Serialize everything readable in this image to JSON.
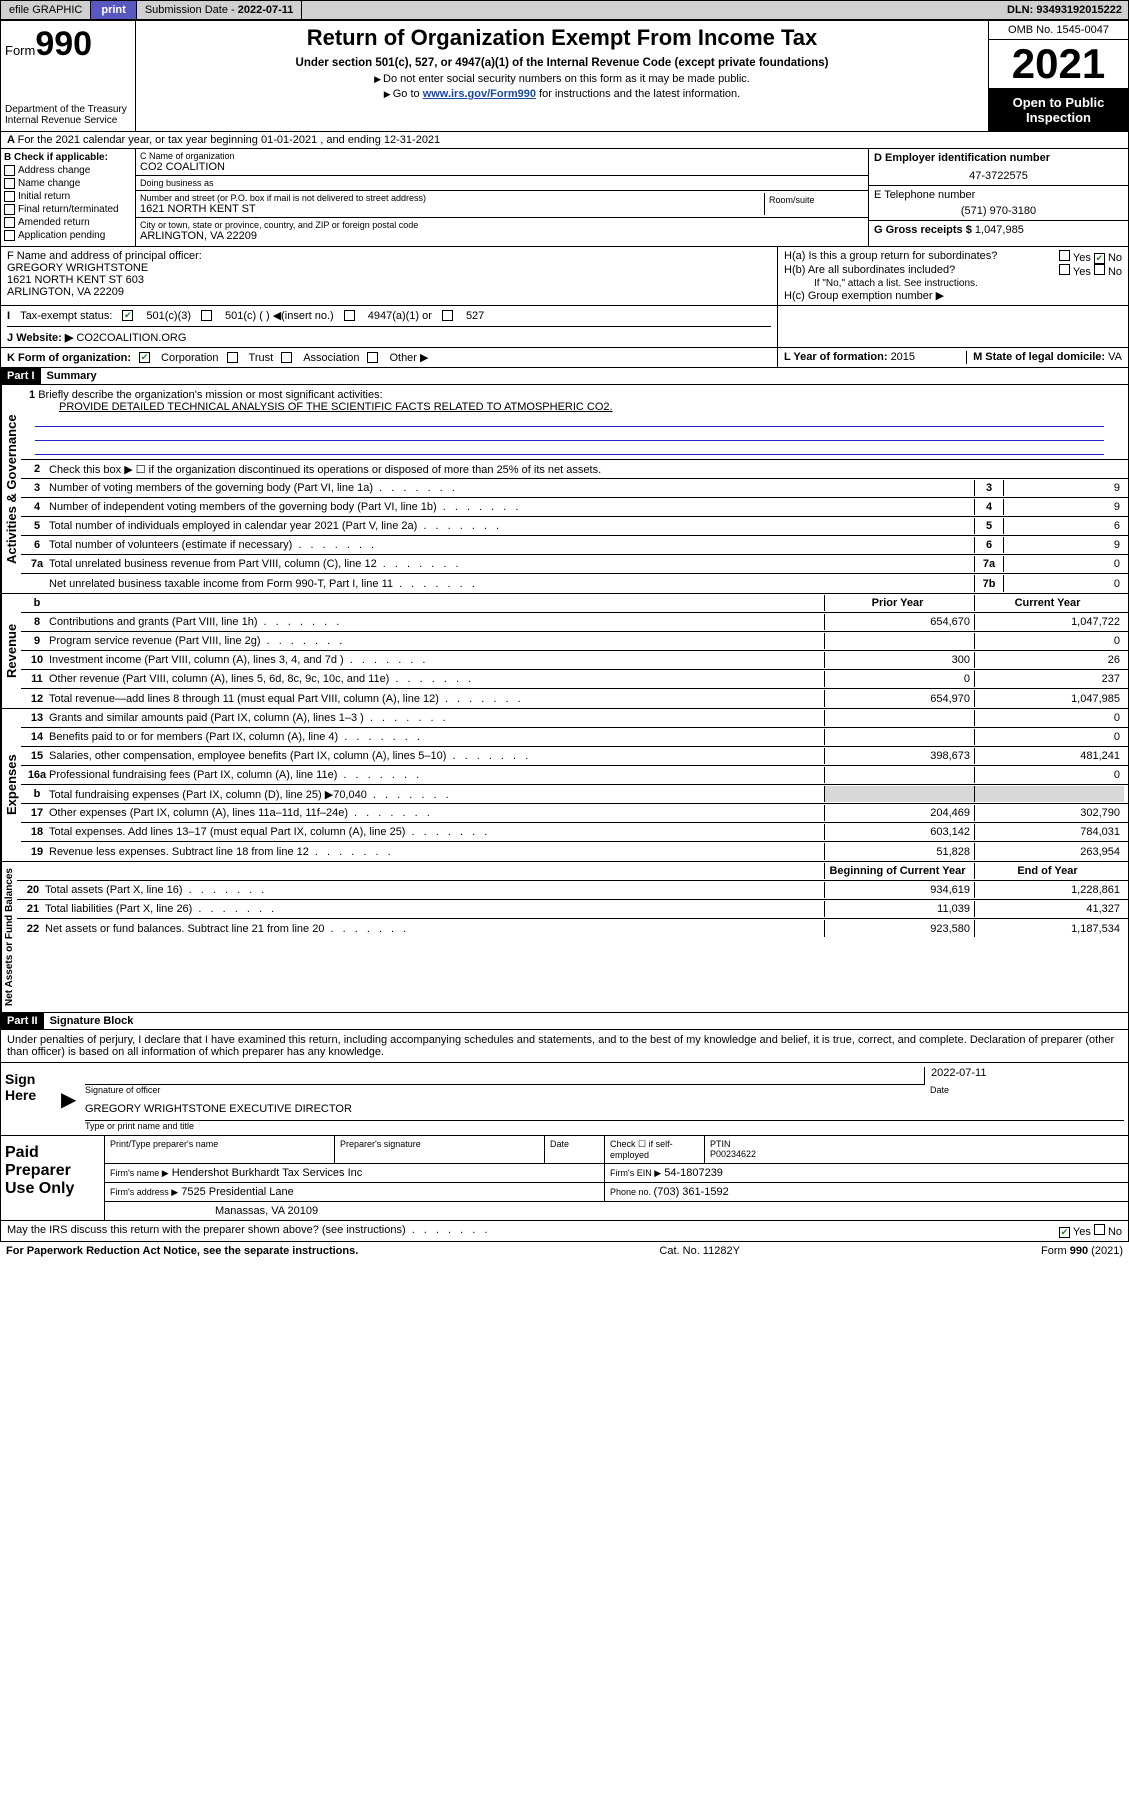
{
  "topbar": {
    "efile": "efile GRAPHIC",
    "print": "print",
    "subdate_label": "Submission Date - ",
    "subdate": "2022-07-11",
    "dln_label": "DLN: ",
    "dln": "93493192015222"
  },
  "header": {
    "form_prefix": "Form",
    "form_num": "990",
    "title": "Return of Organization Exempt From Income Tax",
    "subtitle": "Under section 501(c), 527, or 4947(a)(1) of the Internal Revenue Code (except private foundations)",
    "note1": "Do not enter social security numbers on this form as it may be made public.",
    "note2_pre": "Go to ",
    "note2_link": "www.irs.gov/Form990",
    "note2_post": " for instructions and the latest information.",
    "dept": "Department of the Treasury\nInternal Revenue Service",
    "omb": "OMB No. 1545-0047",
    "year": "2021",
    "open": "Open to Public Inspection"
  },
  "row_a": "For the 2021 calendar year, or tax year beginning 01-01-2021   , and ending 12-31-2021",
  "b": {
    "label": "B Check if applicable:",
    "items": [
      "Address change",
      "Name change",
      "Initial return",
      "Final return/terminated",
      "Amended return",
      "Application pending"
    ]
  },
  "c": {
    "name_label": "C Name of organization",
    "name": "CO2 COALITION",
    "dba_label": "Doing business as",
    "addr_label": "Number and street (or P.O. box if mail is not delivered to street address)",
    "room_label": "Room/suite",
    "addr": "1621 NORTH KENT ST",
    "city_label": "City or town, state or province, country, and ZIP or foreign postal code",
    "city": "ARLINGTON, VA  22209"
  },
  "d": {
    "ein_label": "D Employer identification number",
    "ein": "47-3722575",
    "tel_label": "E Telephone number",
    "tel": "(571) 970-3180",
    "gross_label": "G Gross receipts $ ",
    "gross": "1,047,985"
  },
  "f": {
    "label": "F  Name and address of principal officer:",
    "name": "GREGORY WRIGHTSTONE",
    "addr1": "1621 NORTH KENT ST 603",
    "addr2": "ARLINGTON, VA  22209"
  },
  "h": {
    "a": "H(a)  Is this a group return for subordinates?",
    "b": "H(b)  Are all subordinates included?",
    "b_note": "If \"No,\" attach a list. See instructions.",
    "c": "H(c)  Group exemption number ▶",
    "yes": "Yes",
    "no": "No"
  },
  "i": {
    "label": "Tax-exempt status:",
    "o1": "501(c)(3)",
    "o2": "501(c) (  ) ◀(insert no.)",
    "o3": "4947(a)(1) or",
    "o4": "527"
  },
  "j": {
    "label": "Website: ▶",
    "val": "CO2COALITION.ORG"
  },
  "k": {
    "label": "K Form of organization:",
    "opts": [
      "Corporation",
      "Trust",
      "Association",
      "Other ▶"
    ]
  },
  "l": {
    "label": "L Year of formation: ",
    "val": "2015"
  },
  "m": {
    "label": "M State of legal domicile: ",
    "val": "VA"
  },
  "part1": {
    "num": "Part I",
    "title": "Summary"
  },
  "mission": {
    "label": "Briefly describe the organization's mission or most significant activities:",
    "text": "PROVIDE DETAILED TECHNICAL ANALYSIS OF THE SCIENTIFIC FACTS RELATED TO ATMOSPHERIC CO2."
  },
  "summary": {
    "l2": "Check this box ▶ ☐ if the organization discontinued its operations or disposed of more than 25% of its net assets.",
    "l3": {
      "t": "Number of voting members of the governing body (Part VI, line 1a)",
      "n": "3",
      "v": "9"
    },
    "l4": {
      "t": "Number of independent voting members of the governing body (Part VI, line 1b)",
      "n": "4",
      "v": "9"
    },
    "l5": {
      "t": "Total number of individuals employed in calendar year 2021 (Part V, line 2a)",
      "n": "5",
      "v": "6"
    },
    "l6": {
      "t": "Total number of volunteers (estimate if necessary)",
      "n": "6",
      "v": "9"
    },
    "l7a": {
      "t": "Total unrelated business revenue from Part VIII, column (C), line 12",
      "n": "7a",
      "v": "0"
    },
    "l7b": {
      "t": "Net unrelated business taxable income from Form 990-T, Part I, line 11",
      "n": "7b",
      "v": "0"
    }
  },
  "twocol_hdr": {
    "prior": "Prior Year",
    "current": "Current Year"
  },
  "revenue": [
    {
      "n": "8",
      "t": "Contributions and grants (Part VIII, line 1h)",
      "p": "654,670",
      "c": "1,047,722"
    },
    {
      "n": "9",
      "t": "Program service revenue (Part VIII, line 2g)",
      "p": "",
      "c": "0"
    },
    {
      "n": "10",
      "t": "Investment income (Part VIII, column (A), lines 3, 4, and 7d )",
      "p": "300",
      "c": "26"
    },
    {
      "n": "11",
      "t": "Other revenue (Part VIII, column (A), lines 5, 6d, 8c, 9c, 10c, and 11e)",
      "p": "0",
      "c": "237"
    },
    {
      "n": "12",
      "t": "Total revenue—add lines 8 through 11 (must equal Part VIII, column (A), line 12)",
      "p": "654,970",
      "c": "1,047,985"
    }
  ],
  "expenses": [
    {
      "n": "13",
      "t": "Grants and similar amounts paid (Part IX, column (A), lines 1–3 )",
      "p": "",
      "c": "0"
    },
    {
      "n": "14",
      "t": "Benefits paid to or for members (Part IX, column (A), line 4)",
      "p": "",
      "c": "0"
    },
    {
      "n": "15",
      "t": "Salaries, other compensation, employee benefits (Part IX, column (A), lines 5–10)",
      "p": "398,673",
      "c": "481,241"
    },
    {
      "n": "16a",
      "t": "Professional fundraising fees (Part IX, column (A), line 11e)",
      "p": "",
      "c": "0"
    },
    {
      "n": "b",
      "t": "Total fundraising expenses (Part IX, column (D), line 25) ▶70,040",
      "p": "shade",
      "c": "shade"
    },
    {
      "n": "17",
      "t": "Other expenses (Part IX, column (A), lines 11a–11d, 11f–24e)",
      "p": "204,469",
      "c": "302,790"
    },
    {
      "n": "18",
      "t": "Total expenses. Add lines 13–17 (must equal Part IX, column (A), line 25)",
      "p": "603,142",
      "c": "784,031"
    },
    {
      "n": "19",
      "t": "Revenue less expenses. Subtract line 18 from line 12",
      "p": "51,828",
      "c": "263,954"
    }
  ],
  "netassets_hdr": {
    "begin": "Beginning of Current Year",
    "end": "End of Year"
  },
  "netassets": [
    {
      "n": "20",
      "t": "Total assets (Part X, line 16)",
      "p": "934,619",
      "c": "1,228,861"
    },
    {
      "n": "21",
      "t": "Total liabilities (Part X, line 26)",
      "p": "11,039",
      "c": "41,327"
    },
    {
      "n": "22",
      "t": "Net assets or fund balances. Subtract line 21 from line 20",
      "p": "923,580",
      "c": "1,187,534"
    }
  ],
  "vtabs": {
    "ag": "Activities & Governance",
    "rev": "Revenue",
    "exp": "Expenses",
    "na": "Net Assets or Fund Balances"
  },
  "part2": {
    "num": "Part II",
    "title": "Signature Block"
  },
  "penalties": "Under penalties of perjury, I declare that I have examined this return, including accompanying schedules and statements, and to the best of my knowledge and belief, it is true, correct, and complete. Declaration of preparer (other than officer) is based on all information of which preparer has any knowledge.",
  "sign": {
    "here": "Sign Here",
    "sig_officer": "Signature of officer",
    "date": "Date",
    "date_val": "2022-07-11",
    "name": "GREGORY WRIGHTSTONE  EXECUTIVE DIRECTOR",
    "name_label": "Type or print name and title"
  },
  "prep": {
    "label": "Paid Preparer Use Only",
    "h1": "Print/Type preparer's name",
    "h2": "Preparer's signature",
    "h3": "Date",
    "check_if": "Check ☐ if self-employed",
    "ptin_label": "PTIN",
    "ptin": "P00234622",
    "firm_name_label": "Firm's name   ▶",
    "firm_name": "Hendershot Burkhardt Tax Services Inc",
    "firm_ein_label": "Firm's EIN ▶",
    "firm_ein": "54-1807239",
    "firm_addr_label": "Firm's address ▶",
    "firm_addr1": "7525 Presidential Lane",
    "firm_addr2": "Manassas, VA  20109",
    "phone_label": "Phone no. ",
    "phone": "(703) 361-1592"
  },
  "may_discuss": "May the IRS discuss this return with the preparer shown above? (see instructions)",
  "footer": {
    "pra": "For Paperwork Reduction Act Notice, see the separate instructions.",
    "cat": "Cat. No. 11282Y",
    "form": "Form 990 (2021)"
  }
}
